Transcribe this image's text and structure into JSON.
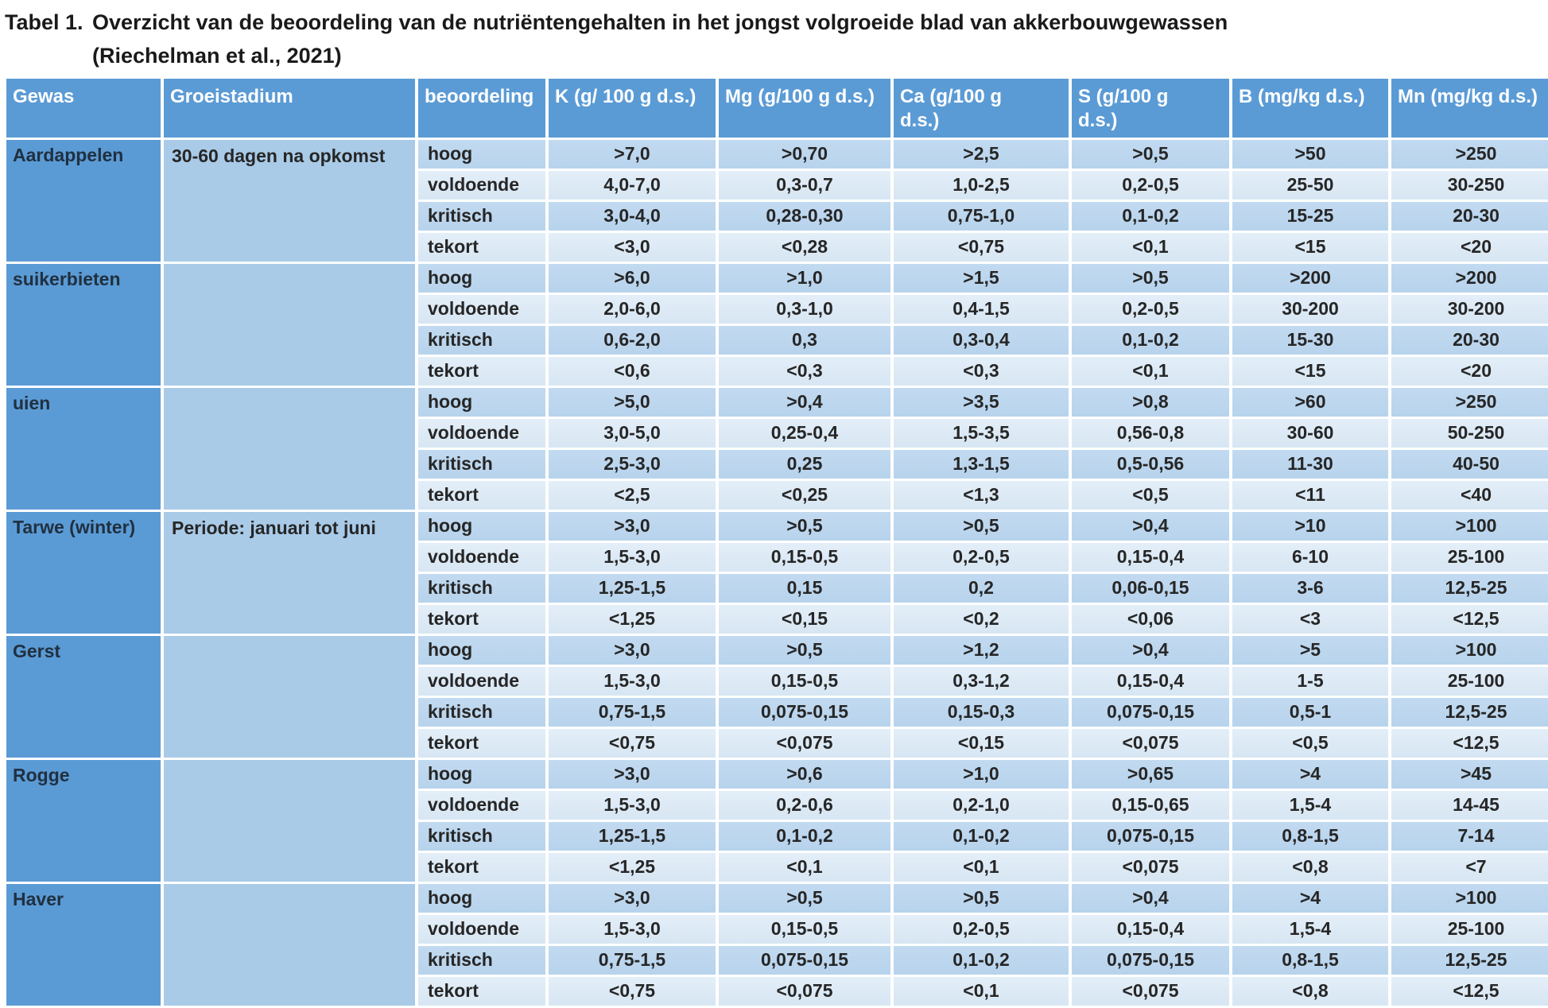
{
  "title": {
    "label": "Tabel 1.",
    "text": "Overzicht van de beoordeling van de nutriëntengehalten in het jongst volgroeide blad van akkerbouwgewassen",
    "source": "(Riechelman et al., 2021)"
  },
  "colors": {
    "header_blue": "#5b9bd5",
    "gewas_blue": "#5b9bd5",
    "stadium_blue": "#a9cbe8",
    "row_dark": "#bdd7ee",
    "row_light": "#dde9f5",
    "header_text": "#ffffff",
    "body_text": "#262626"
  },
  "table": {
    "columns": [
      "Gewas",
      "Groeistadium",
      "beoordeling",
      "K  (g/ 100 g d.s.)",
      "Mg (g/100 g d.s.)",
      "Ca (g/100 g d.s.)",
      "S (g/100 g d.s.)",
      "B (mg/kg d.s.)",
      "Mn (mg/kg d.s.)"
    ],
    "groups": [
      {
        "gewas": "Aardappelen",
        "groeistadium": "30-60 dagen na opkomst",
        "rows": [
          {
            "beoordeling": "hoog",
            "values": [
              ">7,0",
              ">0,70",
              ">2,5",
              ">0,5",
              ">50",
              ">250"
            ]
          },
          {
            "beoordeling": "voldoende",
            "values": [
              "4,0-7,0",
              "0,3-0,7",
              "1,0-2,5",
              "0,2-0,5",
              "25-50",
              "30-250"
            ]
          },
          {
            "beoordeling": "kritisch",
            "values": [
              "3,0-4,0",
              "0,28-0,30",
              "0,75-1,0",
              "0,1-0,2",
              "15-25",
              "20-30"
            ]
          },
          {
            "beoordeling": "tekort",
            "values": [
              "<3,0",
              "<0,28",
              "<0,75",
              "<0,1",
              "<15",
              "<20"
            ]
          }
        ]
      },
      {
        "gewas": "suikerbieten",
        "groeistadium": "",
        "rows": [
          {
            "beoordeling": "hoog",
            "values": [
              ">6,0",
              ">1,0",
              ">1,5",
              ">0,5",
              ">200",
              ">200"
            ]
          },
          {
            "beoordeling": "voldoende",
            "values": [
              "2,0-6,0",
              "0,3-1,0",
              "0,4-1,5",
              "0,2-0,5",
              "30-200",
              "30-200"
            ]
          },
          {
            "beoordeling": "kritisch",
            "values": [
              "0,6-2,0",
              "0,3",
              "0,3-0,4",
              "0,1-0,2",
              "15-30",
              "20-30"
            ]
          },
          {
            "beoordeling": "tekort",
            "values": [
              "<0,6",
              "<0,3",
              "<0,3",
              "<0,1",
              "<15",
              "<20"
            ]
          }
        ]
      },
      {
        "gewas": "uien",
        "groeistadium": "",
        "rows": [
          {
            "beoordeling": "hoog",
            "values": [
              ">5,0",
              ">0,4",
              ">3,5",
              ">0,8",
              ">60",
              ">250"
            ]
          },
          {
            "beoordeling": "voldoende",
            "values": [
              "3,0-5,0",
              "0,25-0,4",
              "1,5-3,5",
              "0,56-0,8",
              "30-60",
              "50-250"
            ]
          },
          {
            "beoordeling": "kritisch",
            "values": [
              "2,5-3,0",
              "0,25",
              "1,3-1,5",
              "0,5-0,56",
              "11-30",
              "40-50"
            ]
          },
          {
            "beoordeling": "tekort",
            "values": [
              "<2,5",
              "<0,25",
              "<1,3",
              "<0,5",
              "<11",
              "<40"
            ]
          }
        ]
      },
      {
        "gewas": "Tarwe (winter)",
        "groeistadium": "Periode: januari tot juni",
        "rows": [
          {
            "beoordeling": "hoog",
            "values": [
              ">3,0",
              ">0,5",
              ">0,5",
              ">0,4",
              ">10",
              ">100"
            ]
          },
          {
            "beoordeling": "voldoende",
            "values": [
              "1,5-3,0",
              "0,15-0,5",
              "0,2-0,5",
              "0,15-0,4",
              "6-10",
              "25-100"
            ]
          },
          {
            "beoordeling": "kritisch",
            "values": [
              "1,25-1,5",
              "0,15",
              "0,2",
              "0,06-0,15",
              "3-6",
              "12,5-25"
            ]
          },
          {
            "beoordeling": "tekort",
            "values": [
              "<1,25",
              "<0,15",
              "<0,2",
              "<0,06",
              "<3",
              "<12,5"
            ]
          }
        ]
      },
      {
        "gewas": "Gerst",
        "groeistadium": "",
        "rows": [
          {
            "beoordeling": "hoog",
            "values": [
              ">3,0",
              ">0,5",
              ">1,2",
              ">0,4",
              ">5",
              ">100"
            ]
          },
          {
            "beoordeling": "voldoende",
            "values": [
              "1,5-3,0",
              "0,15-0,5",
              "0,3-1,2",
              "0,15-0,4",
              "1-5",
              "25-100"
            ]
          },
          {
            "beoordeling": "kritisch",
            "values": [
              "0,75-1,5",
              "0,075-0,15",
              "0,15-0,3",
              "0,075-0,15",
              "0,5-1",
              "12,5-25"
            ]
          },
          {
            "beoordeling": "tekort",
            "values": [
              "<0,75",
              "<0,075",
              "<0,15",
              "<0,075",
              "<0,5",
              "<12,5"
            ]
          }
        ]
      },
      {
        "gewas": "Rogge",
        "groeistadium": "",
        "rows": [
          {
            "beoordeling": "hoog",
            "values": [
              ">3,0",
              ">0,6",
              ">1,0",
              ">0,65",
              ">4",
              ">45"
            ]
          },
          {
            "beoordeling": "voldoende",
            "values": [
              "1,5-3,0",
              "0,2-0,6",
              "0,2-1,0",
              "0,15-0,65",
              "1,5-4",
              "14-45"
            ]
          },
          {
            "beoordeling": "kritisch",
            "values": [
              "1,25-1,5",
              "0,1-0,2",
              "0,1-0,2",
              "0,075-0,15",
              "0,8-1,5",
              "7-14"
            ]
          },
          {
            "beoordeling": "tekort",
            "values": [
              "<1,25",
              "<0,1",
              "<0,1",
              "<0,075",
              "<0,8",
              "<7"
            ]
          }
        ]
      },
      {
        "gewas": "Haver",
        "groeistadium": "",
        "rows": [
          {
            "beoordeling": "hoog",
            "values": [
              ">3,0",
              ">0,5",
              ">0,5",
              ">0,4",
              ">4",
              ">100"
            ]
          },
          {
            "beoordeling": "voldoende",
            "values": [
              "1,5-3,0",
              "0,15-0,5",
              "0,2-0,5",
              "0,15-0,4",
              "1,5-4",
              "25-100"
            ]
          },
          {
            "beoordeling": "kritisch",
            "values": [
              "0,75-1,5",
              "0,075-0,15",
              "0,1-0,2",
              "0,075-0,15",
              "0,8-1,5",
              "12,5-25"
            ]
          },
          {
            "beoordeling": "tekort",
            "values": [
              "<0,75",
              "<0,075",
              "<0,1",
              "<0,075",
              "<0,8",
              "<12,5"
            ]
          }
        ]
      }
    ]
  }
}
